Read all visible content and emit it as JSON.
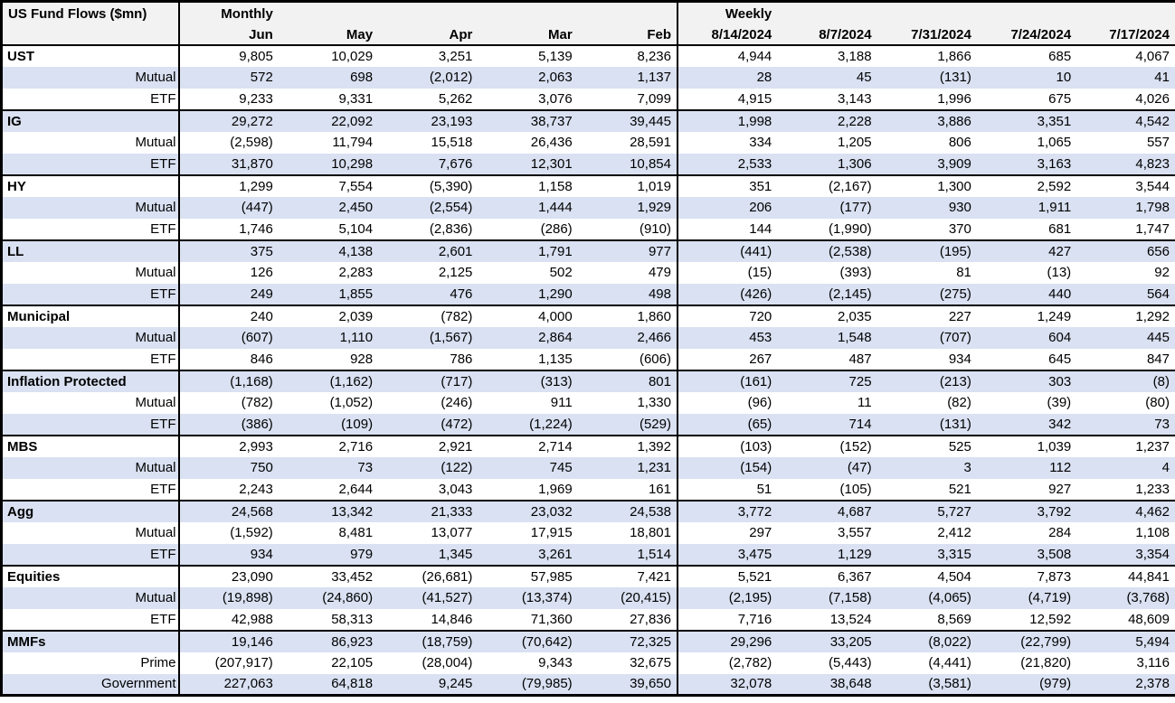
{
  "header": {
    "title": "US Fund Flows ($mn)",
    "monthly_section_label": "Monthly",
    "weekly_section_label": "Weekly",
    "monthly_columns": [
      "Jun",
      "May",
      "Apr",
      "Mar",
      "Feb"
    ],
    "weekly_columns": [
      "8/14/2024",
      "8/7/2024",
      "7/31/2024",
      "7/24/2024",
      "7/17/2024"
    ]
  },
  "colors": {
    "row_band": "#D9E1F2",
    "header_bg": "#F2F2F2",
    "border": "#000000"
  },
  "groups": [
    {
      "rows": [
        {
          "label": "UST",
          "values": [
            "9,805",
            "10,029",
            "3,251",
            "5,139",
            "8,236",
            "4,944",
            "3,188",
            "1,866",
            "685",
            "4,067"
          ]
        },
        {
          "label": "Mutual",
          "values": [
            "572",
            "698",
            "(2,012)",
            "2,063",
            "1,137",
            "28",
            "45",
            "(131)",
            "10",
            "41"
          ]
        },
        {
          "label": "ETF",
          "values": [
            "9,233",
            "9,331",
            "5,262",
            "3,076",
            "7,099",
            "4,915",
            "3,143",
            "1,996",
            "675",
            "4,026"
          ]
        }
      ]
    },
    {
      "rows": [
        {
          "label": "IG",
          "values": [
            "29,272",
            "22,092",
            "23,193",
            "38,737",
            "39,445",
            "1,998",
            "2,228",
            "3,886",
            "3,351",
            "4,542"
          ]
        },
        {
          "label": "Mutual",
          "values": [
            "(2,598)",
            "11,794",
            "15,518",
            "26,436",
            "28,591",
            "334",
            "1,205",
            "806",
            "1,065",
            "557"
          ]
        },
        {
          "label": "ETF",
          "values": [
            "31,870",
            "10,298",
            "7,676",
            "12,301",
            "10,854",
            "2,533",
            "1,306",
            "3,909",
            "3,163",
            "4,823"
          ]
        }
      ]
    },
    {
      "rows": [
        {
          "label": "HY",
          "values": [
            "1,299",
            "7,554",
            "(5,390)",
            "1,158",
            "1,019",
            "351",
            "(2,167)",
            "1,300",
            "2,592",
            "3,544"
          ]
        },
        {
          "label": "Mutual",
          "values": [
            "(447)",
            "2,450",
            "(2,554)",
            "1,444",
            "1,929",
            "206",
            "(177)",
            "930",
            "1,911",
            "1,798"
          ]
        },
        {
          "label": "ETF",
          "values": [
            "1,746",
            "5,104",
            "(2,836)",
            "(286)",
            "(910)",
            "144",
            "(1,990)",
            "370",
            "681",
            "1,747"
          ]
        }
      ]
    },
    {
      "rows": [
        {
          "label": "LL",
          "values": [
            "375",
            "4,138",
            "2,601",
            "1,791",
            "977",
            "(441)",
            "(2,538)",
            "(195)",
            "427",
            "656"
          ]
        },
        {
          "label": "Mutual",
          "values": [
            "126",
            "2,283",
            "2,125",
            "502",
            "479",
            "(15)",
            "(393)",
            "81",
            "(13)",
            "92"
          ]
        },
        {
          "label": "ETF",
          "values": [
            "249",
            "1,855",
            "476",
            "1,290",
            "498",
            "(426)",
            "(2,145)",
            "(275)",
            "440",
            "564"
          ]
        }
      ]
    },
    {
      "rows": [
        {
          "label": "Municipal",
          "values": [
            "240",
            "2,039",
            "(782)",
            "4,000",
            "1,860",
            "720",
            "2,035",
            "227",
            "1,249",
            "1,292"
          ]
        },
        {
          "label": "Mutual",
          "values": [
            "(607)",
            "1,110",
            "(1,567)",
            "2,864",
            "2,466",
            "453",
            "1,548",
            "(707)",
            "604",
            "445"
          ]
        },
        {
          "label": "ETF",
          "values": [
            "846",
            "928",
            "786",
            "1,135",
            "(606)",
            "267",
            "487",
            "934",
            "645",
            "847"
          ]
        }
      ]
    },
    {
      "rows": [
        {
          "label": "Inflation Protected",
          "values": [
            "(1,168)",
            "(1,162)",
            "(717)",
            "(313)",
            "801",
            "(161)",
            "725",
            "(213)",
            "303",
            "(8)"
          ]
        },
        {
          "label": "Mutual",
          "values": [
            "(782)",
            "(1,052)",
            "(246)",
            "911",
            "1,330",
            "(96)",
            "11",
            "(82)",
            "(39)",
            "(80)"
          ]
        },
        {
          "label": "ETF",
          "values": [
            "(386)",
            "(109)",
            "(472)",
            "(1,224)",
            "(529)",
            "(65)",
            "714",
            "(131)",
            "342",
            "73"
          ]
        }
      ]
    },
    {
      "rows": [
        {
          "label": "MBS",
          "values": [
            "2,993",
            "2,716",
            "2,921",
            "2,714",
            "1,392",
            "(103)",
            "(152)",
            "525",
            "1,039",
            "1,237"
          ]
        },
        {
          "label": "Mutual",
          "values": [
            "750",
            "73",
            "(122)",
            "745",
            "1,231",
            "(154)",
            "(47)",
            "3",
            "112",
            "4"
          ]
        },
        {
          "label": "ETF",
          "values": [
            "2,243",
            "2,644",
            "3,043",
            "1,969",
            "161",
            "51",
            "(105)",
            "521",
            "927",
            "1,233"
          ]
        }
      ]
    },
    {
      "rows": [
        {
          "label": "Agg",
          "values": [
            "24,568",
            "13,342",
            "21,333",
            "23,032",
            "24,538",
            "3,772",
            "4,687",
            "5,727",
            "3,792",
            "4,462"
          ]
        },
        {
          "label": "Mutual",
          "values": [
            "(1,592)",
            "8,481",
            "13,077",
            "17,915",
            "18,801",
            "297",
            "3,557",
            "2,412",
            "284",
            "1,108"
          ]
        },
        {
          "label": "ETF",
          "values": [
            "934",
            "979",
            "1,345",
            "3,261",
            "1,514",
            "3,475",
            "1,129",
            "3,315",
            "3,508",
            "3,354"
          ]
        }
      ]
    },
    {
      "rows": [
        {
          "label": "Equities",
          "values": [
            "23,090",
            "33,452",
            "(26,681)",
            "57,985",
            "7,421",
            "5,521",
            "6,367",
            "4,504",
            "7,873",
            "44,841"
          ]
        },
        {
          "label": "Mutual",
          "values": [
            "(19,898)",
            "(24,860)",
            "(41,527)",
            "(13,374)",
            "(20,415)",
            "(2,195)",
            "(7,158)",
            "(4,065)",
            "(4,719)",
            "(3,768)"
          ]
        },
        {
          "label": "ETF",
          "values": [
            "42,988",
            "58,313",
            "14,846",
            "71,360",
            "27,836",
            "7,716",
            "13,524",
            "8,569",
            "12,592",
            "48,609"
          ]
        }
      ]
    },
    {
      "rows": [
        {
          "label": "MMFs",
          "values": [
            "19,146",
            "86,923",
            "(18,759)",
            "(70,642)",
            "72,325",
            "29,296",
            "33,205",
            "(8,022)",
            "(22,799)",
            "5,494"
          ]
        },
        {
          "label": "Prime",
          "values": [
            "(207,917)",
            "22,105",
            "(28,004)",
            "9,343",
            "32,675",
            "(2,782)",
            "(5,443)",
            "(4,441)",
            "(21,820)",
            "3,116"
          ]
        },
        {
          "label": "Government",
          "values": [
            "227,063",
            "64,818",
            "9,245",
            "(79,985)",
            "39,650",
            "32,078",
            "38,648",
            "(3,581)",
            "(979)",
            "2,378"
          ]
        }
      ]
    }
  ]
}
